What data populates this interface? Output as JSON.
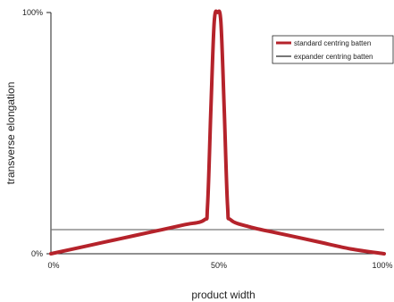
{
  "chart_data": {
    "type": "line",
    "xlabel": "product width",
    "ylabel": "transverse elongation",
    "x_ticks": [
      "0%",
      "50%",
      "100%"
    ],
    "y_ticks": [
      "0%",
      "100%"
    ],
    "xlim": [
      0,
      100
    ],
    "ylim": [
      0,
      100
    ],
    "grid": false,
    "legend_position": "top-right",
    "series": [
      {
        "name": "standard centring batten",
        "color": "#b5232b",
        "x": [
          0,
          10,
          20,
          30,
          40,
          46,
          47,
          48,
          49,
          50,
          51,
          52,
          53,
          54,
          60,
          70,
          80,
          90,
          100
        ],
        "y": [
          0,
          3,
          6,
          9,
          12,
          14,
          20,
          60,
          96,
          100,
          96,
          60,
          20,
          14,
          11,
          8,
          5,
          2,
          0
        ]
      },
      {
        "name": "expander centring batten",
        "color": "#777777",
        "x": [
          0,
          100
        ],
        "y": [
          10,
          10
        ]
      }
    ]
  }
}
